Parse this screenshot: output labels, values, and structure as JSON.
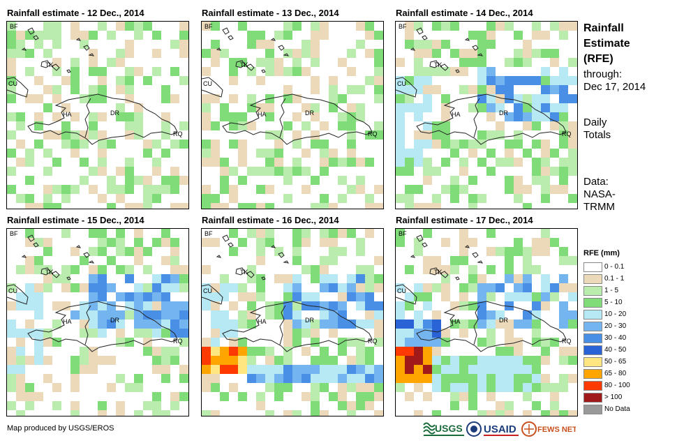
{
  "panels": [
    {
      "title": "Rainfall estimate - 12 Dec., 2014",
      "seed": 12,
      "intensity": 1
    },
    {
      "title": "Rainfall estimate - 13 Dec., 2014",
      "seed": 13,
      "intensity": 2
    },
    {
      "title": "Rainfall estimate - 14 Dec., 2014",
      "seed": 14,
      "intensity": 3
    },
    {
      "title": "Rainfall estimate - 15 Dec., 2014",
      "seed": 15,
      "intensity": 4
    },
    {
      "title": "Rainfall estimate - 16 Dec., 2014",
      "seed": 16,
      "intensity": 5
    },
    {
      "title": "Rainfall estimate - 17 Dec., 2014",
      "seed": 17,
      "intensity": 6
    }
  ],
  "map_labels": {
    "bf": "BF",
    "cu": "CU",
    "tk": "TK",
    "ha": "HA",
    "dr": "DR",
    "rq": "RQ"
  },
  "side": {
    "title_line1": "Rainfall",
    "title_line2": "Estimate",
    "title_line3": "(RFE)",
    "through_label": "through:",
    "through_date": "Dec 17, 2014",
    "daily_line1": "Daily",
    "daily_line2": "Totals",
    "data_line1": "Data:",
    "data_line2": "NASA-",
    "data_line3": "TRMM"
  },
  "legend": {
    "title": "RFE (mm)",
    "items": [
      {
        "label": "0 - 0.1",
        "color": "#ffffff"
      },
      {
        "label": "0.1 - 1",
        "color": "#ecd9b9"
      },
      {
        "label": "1 - 5",
        "color": "#b9ecad"
      },
      {
        "label": "5 - 10",
        "color": "#7fdc79"
      },
      {
        "label": "10 - 20",
        "color": "#b7e9f4"
      },
      {
        "label": "20 - 30",
        "color": "#74b5ef"
      },
      {
        "label": "30 - 40",
        "color": "#4a8fe6"
      },
      {
        "label": "40 - 50",
        "color": "#2a63d6"
      },
      {
        "label": "50 - 65",
        "color": "#ffe680"
      },
      {
        "label": "65 - 80",
        "color": "#ffa500"
      },
      {
        "label": "80 - 100",
        "color": "#ff3a00"
      },
      {
        "label": "> 100",
        "color": "#a01a1a"
      },
      {
        "label": "No Data",
        "color": "#999999"
      }
    ]
  },
  "credit": "Map produced by USGS/EROS",
  "logos": {
    "usgs": "USGS",
    "usaid": "USAID",
    "fews": "FEWS NET"
  }
}
